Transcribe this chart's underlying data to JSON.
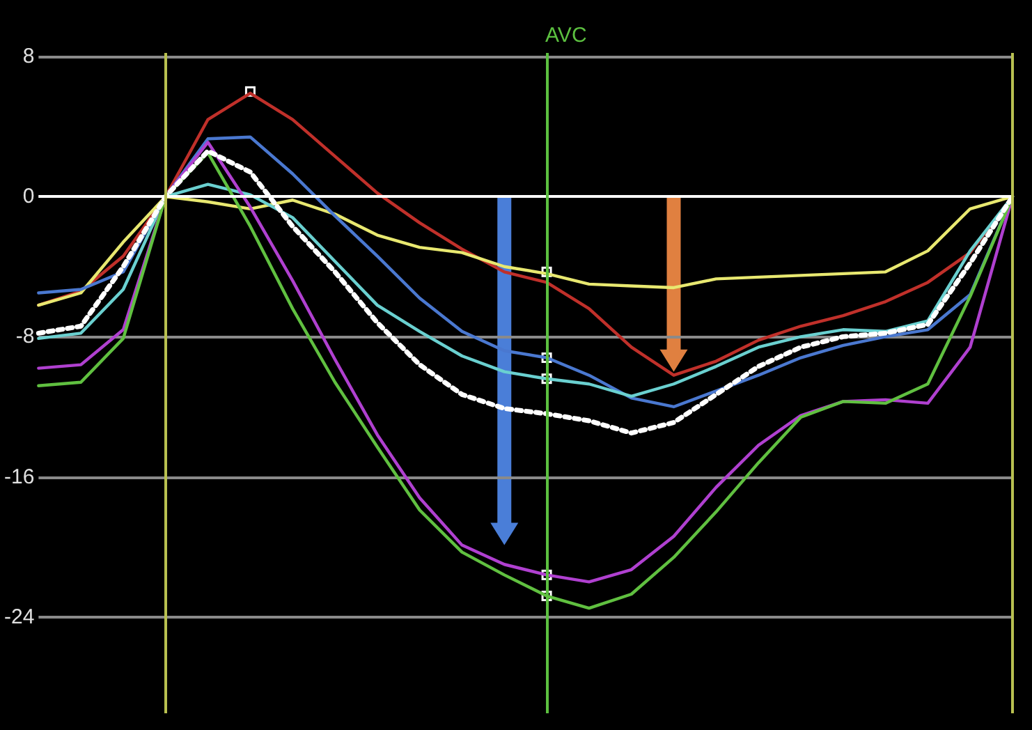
{
  "chart_data": {
    "type": "line",
    "categories": [
      null,
      null,
      null,
      null,
      null,
      null,
      null,
      null,
      null,
      null,
      null,
      null,
      null,
      null,
      null,
      null,
      null,
      null,
      null,
      null,
      null,
      null,
      null,
      null
    ],
    "ylim": [
      -29.5,
      8.2
    ],
    "yticks": [
      8,
      0,
      -8,
      -16,
      -24
    ],
    "grid": "y",
    "tick_labels": "y",
    "marker": "none",
    "series": [
      {
        "color": "#c0302a",
        "values": [
          -6.2,
          -5.4,
          -3.4,
          0,
          4.4,
          5.9,
          4.4,
          2.3,
          0.2,
          -1.5,
          -3.0,
          -4.3,
          -4.9,
          -6.4,
          -8.6,
          -10.2,
          -9.4,
          -8.2,
          -7.4,
          -6.8,
          -6.0,
          -4.9,
          -3.2,
          0
        ]
      },
      {
        "color": "#e8e870",
        "values": [
          -6.2,
          -5.5,
          -2.6,
          0,
          -0.3,
          -0.7,
          -0.2,
          -1.0,
          -2.2,
          -2.9,
          -3.2,
          -4.0,
          -4.4,
          -5.0,
          -5.1,
          -5.2,
          -4.7,
          -4.6,
          -4.5,
          -4.4,
          -4.3,
          -3.1,
          -0.7,
          0
        ]
      },
      {
        "color": "#4a78d0",
        "values": [
          -5.5,
          -5.3,
          -4.3,
          0,
          3.3,
          3.4,
          1.3,
          -1.1,
          -3.4,
          -5.8,
          -7.7,
          -8.8,
          -9.2,
          -10.2,
          -11.5,
          -12.0,
          -11.1,
          -10.2,
          -9.2,
          -8.5,
          -8.0,
          -7.6,
          -5.6,
          0
        ]
      },
      {
        "color": "#6ad0d0",
        "values": [
          -8.1,
          -7.8,
          -5.3,
          0,
          0.7,
          0.1,
          -1.2,
          -3.7,
          -6.2,
          -7.7,
          -9.1,
          -10.0,
          -10.4,
          -10.7,
          -11.4,
          -10.7,
          -9.7,
          -8.6,
          -8.0,
          -7.6,
          -7.7,
          -7.1,
          -3.1,
          0
        ]
      },
      {
        "color": "#b040d0",
        "values": [
          -9.8,
          -9.6,
          -7.6,
          0,
          3.1,
          -0.6,
          -4.8,
          -9.3,
          -13.6,
          -17.2,
          -19.9,
          -21.0,
          -21.6,
          -22.0,
          -21.3,
          -19.4,
          -16.6,
          -14.2,
          -12.5,
          -11.7,
          -11.6,
          -11.8,
          -8.6,
          0
        ]
      },
      {
        "color": "#60c040",
        "values": [
          -10.8,
          -10.6,
          -8.1,
          0,
          2.5,
          -1.7,
          -6.4,
          -10.6,
          -14.3,
          -17.9,
          -20.3,
          -21.6,
          -22.8,
          -23.5,
          -22.7,
          -20.6,
          -18.0,
          -15.2,
          -12.6,
          -11.7,
          -11.8,
          -10.7,
          -5.7,
          0
        ]
      },
      {
        "color": "#ffffff",
        "line_style": "dotted",
        "values": [
          -7.8,
          -7.4,
          -4.0,
          0,
          2.6,
          1.4,
          -1.7,
          -4.3,
          -7.2,
          -9.6,
          -11.3,
          -12.1,
          -12.4,
          -12.8,
          -13.5,
          -12.9,
          -11.3,
          -9.7,
          -8.6,
          -8.0,
          -7.8,
          -7.3,
          -3.8,
          0
        ]
      }
    ],
    "ref_lines": [
      {
        "axis": "y",
        "value": 0,
        "color": "#ffffff"
      }
    ],
    "annotations": [
      "AVC"
    ]
  }
}
